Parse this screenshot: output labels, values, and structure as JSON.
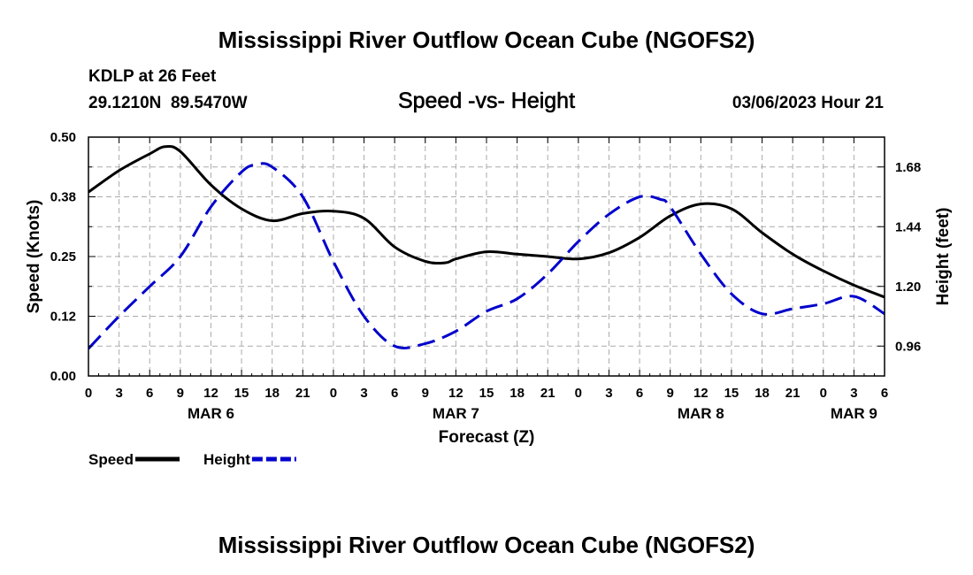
{
  "header": {
    "title": "Mississippi River Outflow Ocean Cube (NGOFS2)",
    "station": "KDLP at 26 Feet",
    "coords": "29.1210N  89.5470W",
    "subtitle": "Speed -vs- Height",
    "datetime": "03/06/2023 Hour 21"
  },
  "footer": {
    "title": "Mississippi River Outflow Ocean Cube (NGOFS2)"
  },
  "chart_data": {
    "type": "line",
    "title": "Speed -vs- Height",
    "xlabel": "Forecast (Z)",
    "ylabel": "Speed (Knots)",
    "y2label": "Height (feet)",
    "x_unit": "hours since MAR 6 00Z",
    "xlim": [
      0,
      78
    ],
    "ylim": [
      0,
      0.5
    ],
    "y2lim": [
      0.84,
      1.8
    ],
    "x_ticks": [
      0,
      3,
      6,
      9,
      12,
      15,
      18,
      21,
      24,
      27,
      30,
      33,
      36,
      39,
      42,
      45,
      48,
      51,
      54,
      57,
      60,
      63,
      66,
      69,
      72,
      75,
      78
    ],
    "x_tick_labels": [
      "0",
      "3",
      "6",
      "9",
      "12",
      "15",
      "18",
      "21",
      "0",
      "3",
      "6",
      "9",
      "12",
      "15",
      "18",
      "21",
      "0",
      "3",
      "6",
      "9",
      "12",
      "15",
      "18",
      "21",
      "0",
      "3",
      "6"
    ],
    "date_labels": [
      {
        "x": 12,
        "label": "MAR 6"
      },
      {
        "x": 36,
        "label": "MAR 7"
      },
      {
        "x": 60,
        "label": "MAR 8"
      },
      {
        "x": 75,
        "label": "MAR 9"
      }
    ],
    "y_ticks": [
      0.0,
      0.125,
      0.25,
      0.375,
      0.5
    ],
    "y_tick_labels": [
      "0.00",
      "0.12",
      "0.25",
      "0.38",
      "0.50"
    ],
    "y2_ticks": [
      0.96,
      1.2,
      1.44,
      1.68
    ],
    "y2_tick_labels": [
      "0.96",
      "1.20",
      "1.44",
      "1.68"
    ],
    "grid": true,
    "legend": [
      {
        "name": "Speed",
        "color": "#000000",
        "style": "solid"
      },
      {
        "name": "Height",
        "color": "#0000cc",
        "style": "dashed"
      }
    ],
    "series": [
      {
        "name": "Speed",
        "axis": "left",
        "unit": "knots",
        "color": "#000000",
        "x": [
          0,
          3,
          6,
          7.5,
          9,
          12,
          15,
          18,
          21,
          24,
          27,
          30,
          33,
          35,
          36,
          39,
          42,
          45,
          48,
          51,
          54,
          57,
          60,
          63,
          66,
          69,
          72,
          75,
          78
        ],
        "values": [
          0.385,
          0.43,
          0.465,
          0.48,
          0.47,
          0.4,
          0.35,
          0.325,
          0.34,
          0.345,
          0.33,
          0.27,
          0.24,
          0.237,
          0.245,
          0.26,
          0.255,
          0.25,
          0.245,
          0.258,
          0.29,
          0.335,
          0.36,
          0.35,
          0.3,
          0.255,
          0.22,
          0.19,
          0.165
        ]
      },
      {
        "name": "Height",
        "axis": "right",
        "unit": "feet",
        "color": "#0000cc",
        "x": [
          0,
          3,
          6,
          9,
          12,
          15,
          16.5,
          18,
          21,
          24,
          27,
          30,
          33,
          36,
          39,
          42,
          45,
          48,
          51,
          54,
          56,
          57,
          60,
          63,
          66,
          69,
          72,
          75,
          78
        ],
        "values": [
          0.95,
          1.08,
          1.2,
          1.32,
          1.52,
          1.66,
          1.69,
          1.68,
          1.56,
          1.3,
          1.08,
          0.96,
          0.97,
          1.02,
          1.1,
          1.15,
          1.25,
          1.38,
          1.49,
          1.56,
          1.55,
          1.52,
          1.33,
          1.17,
          1.09,
          1.11,
          1.13,
          1.16,
          1.09
        ]
      }
    ]
  }
}
